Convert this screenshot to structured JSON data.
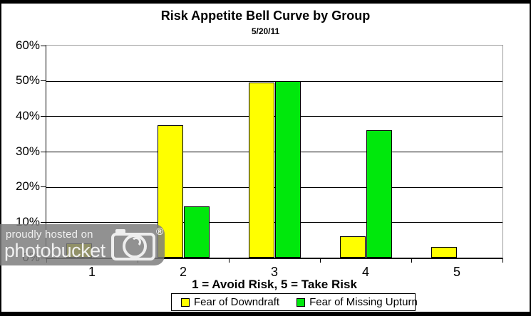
{
  "chart_data": {
    "type": "bar",
    "title": "Risk Appetite Bell Curve by Group",
    "subtitle": "5/20/11",
    "xlabel": "1 = Avoid Risk, 5 = Take Risk",
    "ylabel": "",
    "categories": [
      "1",
      "2",
      "3",
      "4",
      "5"
    ],
    "series": [
      {
        "name": "Fear of Downdraft",
        "color": "#FFFF00",
        "values": [
          4,
          37.5,
          49.5,
          6,
          3
        ]
      },
      {
        "name": "Fear of Missing Upturn",
        "color": "#00E80C",
        "values": [
          0,
          14.5,
          50,
          36,
          0
        ]
      }
    ],
    "ylim": [
      0,
      60
    ],
    "y_tick_step": 10,
    "y_tick_labels": [
      "0%",
      "10%",
      "20%",
      "30%",
      "40%",
      "50%",
      "60%"
    ],
    "grid": true,
    "legend_position": "bottom"
  },
  "watermark": {
    "line1": "proudly hosted on",
    "line2": "photobucket",
    "registered": "®"
  }
}
